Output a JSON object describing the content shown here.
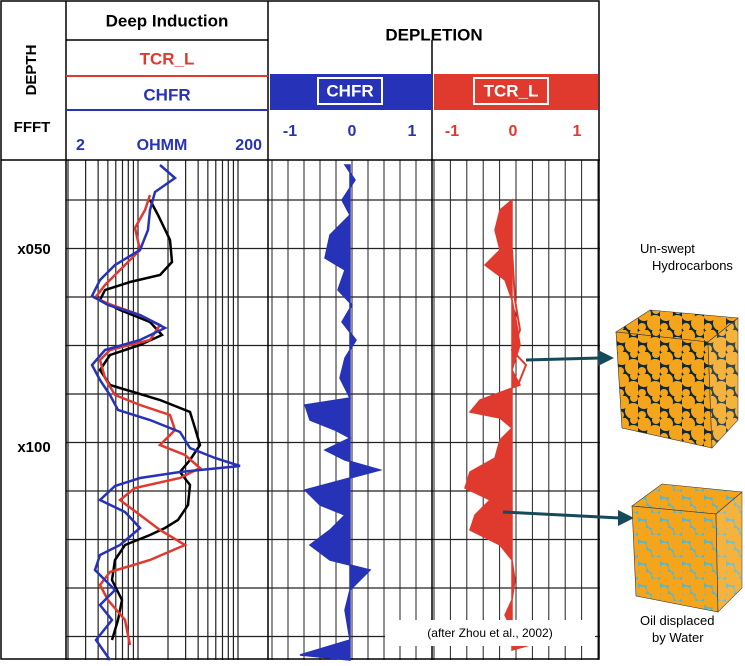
{
  "header": {
    "depth": "DEPTH",
    "unit": "FFFT",
    "induction": "Deep Induction",
    "tcr": "TCR_L",
    "chfr": "CHFR",
    "scale_min": "2",
    "scale_unit": "OHMM",
    "scale_max": "200",
    "depletion": "DEPLETION",
    "chfr_band": "CHFR",
    "tcr_band": "TCR_L",
    "chfr_scale": [
      "-1",
      "0",
      "1"
    ],
    "tcr_scale": [
      "-1",
      "0",
      "1"
    ]
  },
  "depths": [
    "x050",
    "x100"
  ],
  "credit": "(after Zhou et al., 2002)",
  "callouts": {
    "top": "Un-swept Hydrocarbons",
    "bottom": "Oil displaced by Water"
  }
}
